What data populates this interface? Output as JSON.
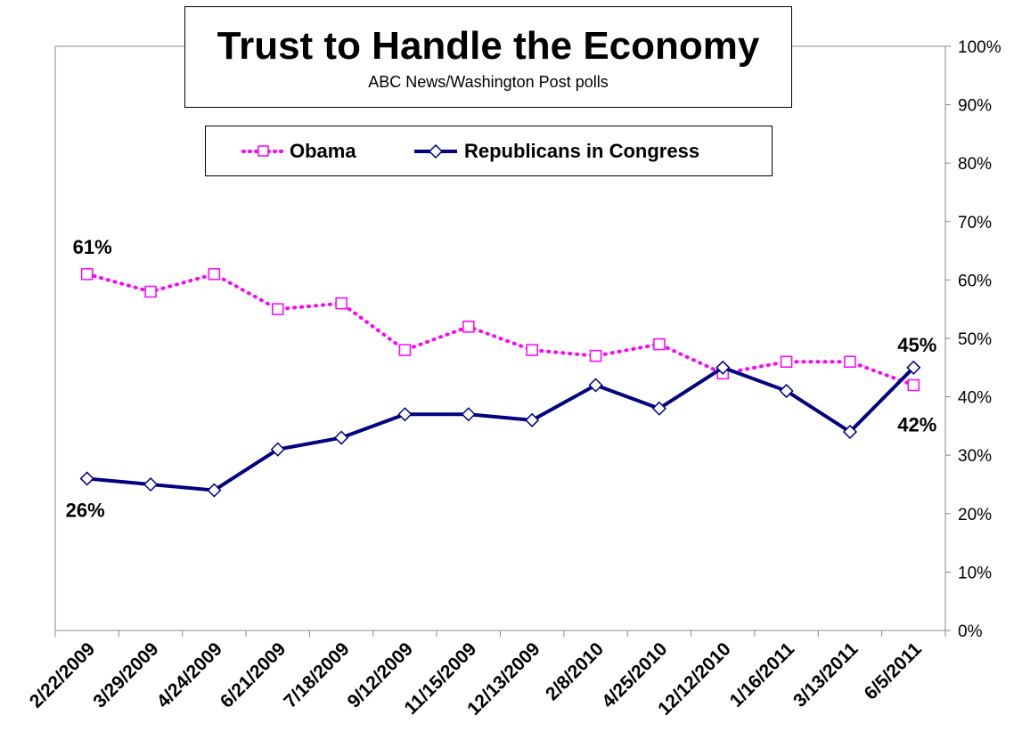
{
  "chart_data": {
    "type": "line",
    "title": "Trust to Handle the Economy",
    "subtitle": "ABC News/Washington Post polls",
    "x_tick_labels": [
      "2/22/2009",
      "3/29/2009",
      "4/24/2009",
      "6/21/2009",
      "7/18/2009",
      "9/12/2009",
      "11/15/2009",
      "12/13/2009",
      "2/8/2010",
      "4/25/2010",
      "12/12/2010",
      "1/16/2011",
      "3/13/2011",
      "6/5/2011"
    ],
    "y_tick_labels": [
      "0%",
      "10%",
      "20%",
      "30%",
      "40%",
      "50%",
      "60%",
      "70%",
      "80%",
      "90%",
      "100%"
    ],
    "ylim": [
      0,
      100
    ],
    "y_axis_side": "right",
    "grid": false,
    "legend_position": "top-center",
    "series": [
      {
        "name": "Obama",
        "color": "#ff00ff",
        "line_style": "dotted",
        "marker": "square",
        "values": [
          61,
          58,
          61,
          55,
          56,
          48,
          52,
          48,
          47,
          49,
          44,
          46,
          46,
          42
        ]
      },
      {
        "name": "Republicans in Congress",
        "color": "#000080",
        "line_style": "solid",
        "marker": "diamond",
        "values": [
          26,
          25,
          24,
          31,
          33,
          37,
          37,
          36,
          42,
          38,
          45,
          41,
          34,
          45
        ]
      }
    ],
    "annotations": [
      {
        "text": "61%",
        "series": 0,
        "index": 0
      },
      {
        "text": "26%",
        "series": 1,
        "index": 0
      },
      {
        "text": "45%",
        "series": 1,
        "index": 13
      },
      {
        "text": "42%",
        "series": 0,
        "index": 13
      }
    ]
  }
}
